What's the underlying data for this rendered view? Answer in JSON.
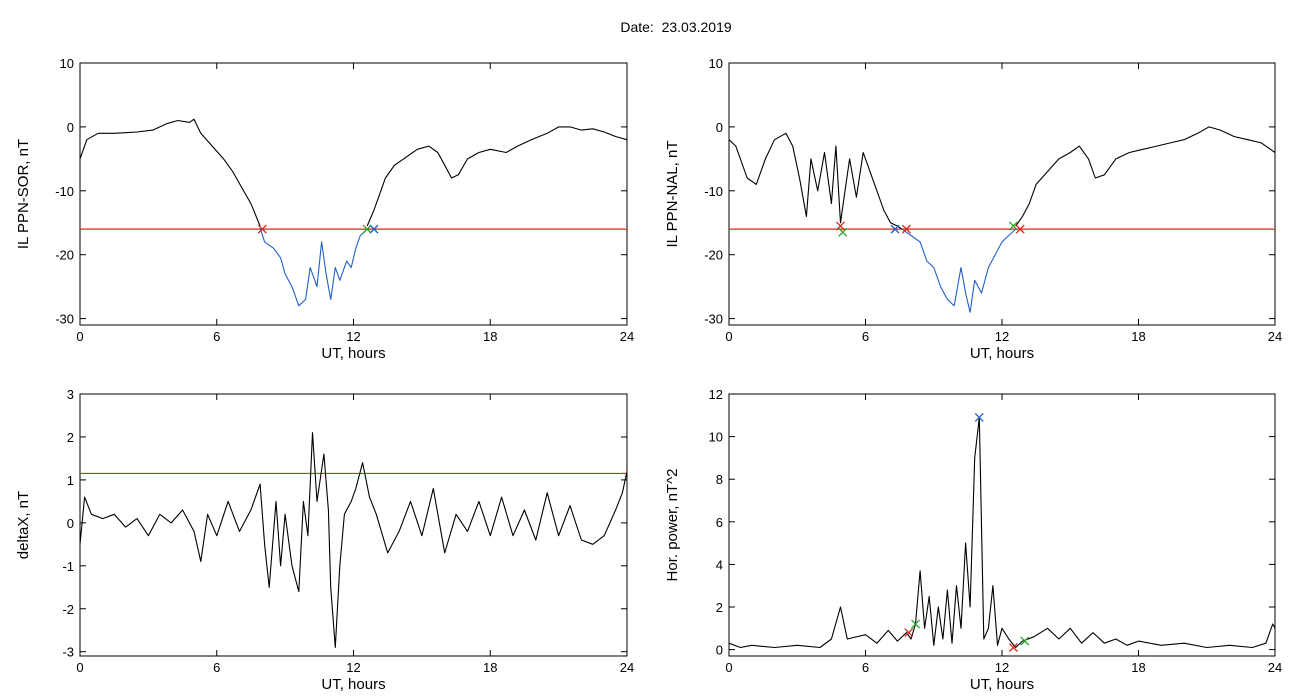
{
  "header": {
    "label": "Date:",
    "date": "23.03.2019"
  },
  "chart_data": [
    {
      "type": "line",
      "ylabel": "IL PPN-SOR, nT",
      "xlabel": "UT, hours",
      "xlim": [
        0,
        24
      ],
      "ylim": [
        -31,
        10
      ],
      "xticks": [
        0,
        6,
        12,
        18,
        24
      ],
      "yticks": [
        10,
        0,
        -10,
        -20,
        -30
      ],
      "threshold": -16,
      "series": [
        {
          "values": [
            [
              0,
              -5
            ],
            [
              0.3,
              -2
            ],
            [
              0.8,
              -1
            ],
            [
              1.5,
              -1
            ],
            [
              2.5,
              -0.8
            ],
            [
              3.2,
              -0.5
            ],
            [
              3.8,
              0.5
            ],
            [
              4.3,
              1
            ],
            [
              4.8,
              0.7
            ],
            [
              5.0,
              1.2
            ],
            [
              5.3,
              -1
            ],
            [
              5.8,
              -3
            ],
            [
              6.3,
              -5
            ],
            [
              6.7,
              -7
            ],
            [
              7.1,
              -9.5
            ],
            [
              7.5,
              -12
            ],
            [
              7.9,
              -15.5
            ]
          ]
        },
        {
          "values": [
            [
              7.9,
              -15.8
            ],
            [
              8.1,
              -18
            ],
            [
              8.5,
              -19
            ],
            [
              8.8,
              -20.5
            ],
            [
              9.0,
              -23
            ],
            [
              9.3,
              -25
            ],
            [
              9.6,
              -28
            ],
            [
              9.9,
              -27
            ],
            [
              10.1,
              -22
            ],
            [
              10.4,
              -25
            ],
            [
              10.6,
              -18
            ],
            [
              10.8,
              -23
            ],
            [
              11.0,
              -27
            ],
            [
              11.2,
              -22
            ],
            [
              11.4,
              -24
            ],
            [
              11.7,
              -21
            ],
            [
              11.9,
              -22
            ],
            [
              12.1,
              -19
            ],
            [
              12.3,
              -17
            ],
            [
              12.6,
              -16
            ]
          ]
        },
        {
          "values": [
            [
              12.6,
              -15.5
            ],
            [
              12.9,
              -13
            ],
            [
              13.1,
              -11
            ],
            [
              13.4,
              -8
            ],
            [
              13.8,
              -6
            ],
            [
              14.2,
              -5
            ],
            [
              14.8,
              -3.5
            ],
            [
              15.3,
              -3
            ],
            [
              15.7,
              -4
            ],
            [
              16.0,
              -6
            ],
            [
              16.3,
              -8
            ],
            [
              16.6,
              -7.5
            ],
            [
              17.0,
              -5
            ],
            [
              17.5,
              -4
            ],
            [
              18.0,
              -3.5
            ],
            [
              18.7,
              -4
            ],
            [
              19.2,
              -3
            ],
            [
              19.8,
              -2
            ],
            [
              20.5,
              -1
            ],
            [
              21.0,
              0
            ],
            [
              21.5,
              0
            ],
            [
              22.0,
              -0.5
            ],
            [
              22.5,
              -0.3
            ],
            [
              23.0,
              -0.8
            ],
            [
              23.5,
              -1.5
            ],
            [
              24.0,
              -2
            ]
          ]
        }
      ],
      "markers": [
        [
          8.0,
          -16
        ],
        [
          12.6,
          -16
        ],
        [
          12.9,
          -16
        ]
      ]
    },
    {
      "type": "line",
      "ylabel": "IL PPN-NAL, nT",
      "xlabel": "UT, hours",
      "xlim": [
        0,
        24
      ],
      "ylim": [
        -31,
        10
      ],
      "xticks": [
        0,
        6,
        12,
        18,
        24
      ],
      "yticks": [
        10,
        0,
        -10,
        -20,
        -30
      ],
      "threshold": -16,
      "series": [
        {
          "values": [
            [
              0,
              -2
            ],
            [
              0.3,
              -3
            ],
            [
              0.8,
              -8
            ],
            [
              1.2,
              -9
            ],
            [
              1.6,
              -5
            ],
            [
              2.0,
              -2
            ],
            [
              2.5,
              -1
            ],
            [
              2.8,
              -3
            ],
            [
              3.1,
              -8
            ],
            [
              3.4,
              -14
            ],
            [
              3.6,
              -5
            ],
            [
              3.9,
              -10
            ],
            [
              4.2,
              -4
            ],
            [
              4.5,
              -12
            ],
            [
              4.7,
              -3
            ],
            [
              4.9,
              -15
            ],
            [
              5.1,
              -10
            ],
            [
              5.3,
              -5
            ],
            [
              5.6,
              -11
            ],
            [
              5.9,
              -4
            ],
            [
              6.2,
              -7
            ],
            [
              6.5,
              -10
            ],
            [
              6.8,
              -13
            ],
            [
              7.1,
              -15
            ],
            [
              7.4,
              -15.5
            ],
            [
              7.6,
              -16
            ]
          ]
        },
        {
          "values": [
            [
              7.6,
              -16
            ],
            [
              8.0,
              -17
            ],
            [
              8.4,
              -18
            ],
            [
              8.7,
              -21
            ],
            [
              9.0,
              -22
            ],
            [
              9.3,
              -25
            ],
            [
              9.6,
              -27
            ],
            [
              9.9,
              -28
            ],
            [
              10.2,
              -22
            ],
            [
              10.4,
              -26
            ],
            [
              10.6,
              -29
            ],
            [
              10.8,
              -24
            ],
            [
              11.1,
              -26
            ],
            [
              11.4,
              -22
            ],
            [
              11.7,
              -20
            ],
            [
              12.0,
              -18
            ],
            [
              12.3,
              -17
            ],
            [
              12.6,
              -16
            ]
          ]
        },
        {
          "values": [
            [
              12.6,
              -15.5
            ],
            [
              12.9,
              -14
            ],
            [
              13.2,
              -12
            ],
            [
              13.5,
              -9
            ],
            [
              14.0,
              -7
            ],
            [
              14.5,
              -5
            ],
            [
              15.0,
              -4
            ],
            [
              15.4,
              -3
            ],
            [
              15.8,
              -5
            ],
            [
              16.1,
              -8
            ],
            [
              16.5,
              -7.5
            ],
            [
              17.0,
              -5
            ],
            [
              17.6,
              -4
            ],
            [
              18.2,
              -3.5
            ],
            [
              18.8,
              -3
            ],
            [
              19.4,
              -2.5
            ],
            [
              20.0,
              -2
            ],
            [
              20.6,
              -1
            ],
            [
              21.1,
              0
            ],
            [
              21.6,
              -0.5
            ],
            [
              22.2,
              -1.5
            ],
            [
              22.8,
              -2
            ],
            [
              23.4,
              -2.5
            ],
            [
              24.0,
              -4
            ]
          ]
        }
      ],
      "markers": [
        [
          4.9,
          -15.5
        ],
        [
          5.0,
          -16.5
        ],
        [
          7.3,
          -16
        ],
        [
          7.8,
          -16
        ],
        [
          12.5,
          -15.5
        ],
        [
          12.8,
          -16
        ]
      ]
    },
    {
      "type": "line",
      "ylabel": "deltaX, nT",
      "xlabel": "UT, hours",
      "xlim": [
        0,
        24
      ],
      "ylim": [
        -3.1,
        3
      ],
      "xticks": [
        0,
        6,
        12,
        18,
        24
      ],
      "yticks": [
        3,
        2,
        1,
        0,
        -1,
        -2,
        -3
      ],
      "threshold": 1.15,
      "series": [
        {
          "values": [
            [
              0,
              -0.5
            ],
            [
              0.2,
              0.6
            ],
            [
              0.5,
              0.2
            ],
            [
              1.0,
              0.1
            ],
            [
              1.5,
              0.2
            ],
            [
              2.0,
              -0.1
            ],
            [
              2.5,
              0.1
            ],
            [
              3.0,
              -0.3
            ],
            [
              3.5,
              0.2
            ],
            [
              4.0,
              0
            ],
            [
              4.5,
              0.3
            ],
            [
              5.0,
              -0.2
            ],
            [
              5.3,
              -0.9
            ],
            [
              5.6,
              0.2
            ],
            [
              6.0,
              -0.3
            ],
            [
              6.5,
              0.5
            ],
            [
              7.0,
              -0.2
            ],
            [
              7.5,
              0.3
            ],
            [
              7.9,
              0.9
            ],
            [
              8.1,
              -0.5
            ],
            [
              8.3,
              -1.5
            ],
            [
              8.6,
              0.5
            ],
            [
              8.8,
              -1.0
            ],
            [
              9.0,
              0.2
            ],
            [
              9.3,
              -1.0
            ],
            [
              9.6,
              -1.6
            ],
            [
              9.8,
              0.5
            ],
            [
              10.0,
              -0.3
            ],
            [
              10.2,
              2.1
            ],
            [
              10.4,
              0.5
            ],
            [
              10.7,
              1.6
            ],
            [
              10.9,
              0.3
            ],
            [
              11.0,
              -1.5
            ],
            [
              11.2,
              -2.9
            ],
            [
              11.4,
              -1.0
            ],
            [
              11.6,
              0.2
            ],
            [
              11.9,
              0.5
            ],
            [
              12.1,
              0.8
            ],
            [
              12.4,
              1.4
            ],
            [
              12.7,
              0.6
            ],
            [
              13.0,
              0.2
            ],
            [
              13.5,
              -0.7
            ],
            [
              14.0,
              -0.2
            ],
            [
              14.5,
              0.5
            ],
            [
              15.0,
              -0.3
            ],
            [
              15.5,
              0.8
            ],
            [
              16.0,
              -0.7
            ],
            [
              16.5,
              0.2
            ],
            [
              17.0,
              -0.2
            ],
            [
              17.5,
              0.5
            ],
            [
              18.0,
              -0.3
            ],
            [
              18.5,
              0.6
            ],
            [
              19.0,
              -0.3
            ],
            [
              19.5,
              0.3
            ],
            [
              20.0,
              -0.4
            ],
            [
              20.5,
              0.7
            ],
            [
              21.0,
              -0.3
            ],
            [
              21.5,
              0.4
            ],
            [
              22.0,
              -0.4
            ],
            [
              22.5,
              -0.5
            ],
            [
              23.0,
              -0.3
            ],
            [
              23.5,
              0.3
            ],
            [
              23.8,
              0.7
            ],
            [
              24.0,
              1.2
            ]
          ]
        }
      ],
      "markers": []
    },
    {
      "type": "line",
      "ylabel": "Hor. power, nT^2",
      "xlabel": "UT, hours",
      "xlim": [
        0,
        24
      ],
      "ylim": [
        -0.3,
        12
      ],
      "xticks": [
        0,
        6,
        12,
        18,
        24
      ],
      "yticks": [
        12,
        10,
        8,
        6,
        4,
        2,
        0
      ],
      "threshold": null,
      "series": [
        {
          "values": [
            [
              0,
              0.3
            ],
            [
              0.5,
              0.1
            ],
            [
              1.0,
              0.2
            ],
            [
              2.0,
              0.1
            ],
            [
              3.0,
              0.2
            ],
            [
              4.0,
              0.1
            ],
            [
              4.5,
              0.5
            ],
            [
              4.9,
              2.0
            ],
            [
              5.2,
              0.5
            ],
            [
              6.0,
              0.7
            ],
            [
              6.5,
              0.3
            ],
            [
              7.0,
              0.9
            ],
            [
              7.4,
              0.4
            ],
            [
              7.8,
              0.8
            ],
            [
              8.0,
              0.5
            ],
            [
              8.2,
              1.2
            ],
            [
              8.4,
              3.7
            ],
            [
              8.6,
              1.0
            ],
            [
              8.8,
              2.5
            ],
            [
              9.0,
              0.2
            ],
            [
              9.2,
              2.0
            ],
            [
              9.4,
              0.5
            ],
            [
              9.6,
              2.8
            ],
            [
              9.8,
              0.3
            ],
            [
              10.0,
              3.0
            ],
            [
              10.2,
              1.0
            ],
            [
              10.4,
              5.0
            ],
            [
              10.6,
              2.0
            ],
            [
              10.8,
              9.0
            ],
            [
              11.0,
              10.9
            ],
            [
              11.2,
              0.5
            ],
            [
              11.4,
              1.0
            ],
            [
              11.6,
              3.0
            ],
            [
              11.8,
              0.2
            ],
            [
              12.0,
              1.0
            ],
            [
              12.3,
              0.5
            ],
            [
              12.6,
              0.1
            ],
            [
              12.9,
              0.4
            ],
            [
              13.4,
              0.6
            ],
            [
              14.0,
              1.0
            ],
            [
              14.5,
              0.5
            ],
            [
              15.0,
              1.0
            ],
            [
              15.5,
              0.3
            ],
            [
              16.0,
              0.8
            ],
            [
              16.5,
              0.3
            ],
            [
              17.0,
              0.5
            ],
            [
              17.5,
              0.2
            ],
            [
              18.0,
              0.4
            ],
            [
              19.0,
              0.2
            ],
            [
              20.0,
              0.3
            ],
            [
              21.0,
              0.1
            ],
            [
              22.0,
              0.2
            ],
            [
              23.0,
              0.1
            ],
            [
              23.6,
              0.3
            ],
            [
              23.9,
              1.2
            ],
            [
              24.0,
              1.0
            ]
          ]
        }
      ],
      "markers": [
        [
          7.9,
          0.8
        ],
        [
          8.2,
          1.2
        ],
        [
          11.0,
          10.9
        ],
        [
          12.5,
          0.1
        ],
        [
          13.0,
          0.4
        ]
      ]
    }
  ]
}
